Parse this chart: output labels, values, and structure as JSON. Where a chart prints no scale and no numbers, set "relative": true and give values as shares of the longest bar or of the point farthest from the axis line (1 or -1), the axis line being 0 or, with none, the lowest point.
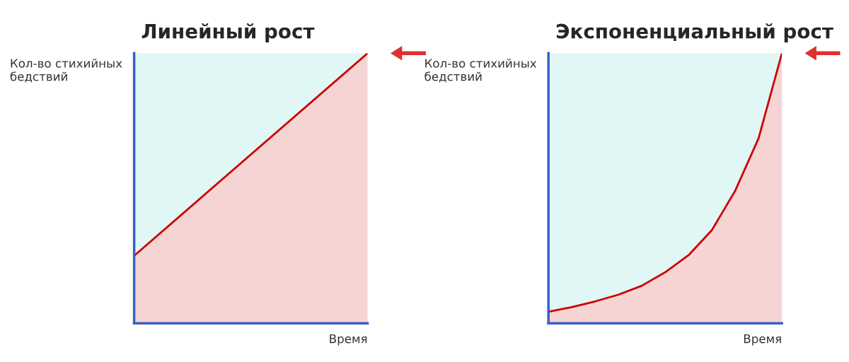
{
  "chart_data": [
    {
      "type": "area",
      "title": "Линейный рост",
      "ylabel": "Кол-во стихийных бедствий",
      "xlabel": "Время",
      "relative": true,
      "tick_labels": false,
      "legend": false,
      "categories": [
        null,
        null
      ],
      "series": [
        {
          "color": "#cc0000",
          "values": [
            0.25,
            1
          ]
        }
      ]
    },
    {
      "type": "area",
      "title": "Экспоненциальный рост",
      "ylabel": "Кол-во стихийных бедствий",
      "xlabel": "Время",
      "relative": true,
      "tick_labels": false,
      "legend": false,
      "categories": [
        null,
        null,
        null,
        null,
        null,
        null,
        null,
        null,
        null,
        null,
        null
      ],
      "series": [
        {
          "color": "#cc0000",
          "values": [
            0.043,
            0.06,
            0.081,
            0.106,
            0.139,
            0.189,
            0.252,
            0.345,
            0.491,
            0.685,
            1
          ]
        }
      ]
    }
  ]
}
